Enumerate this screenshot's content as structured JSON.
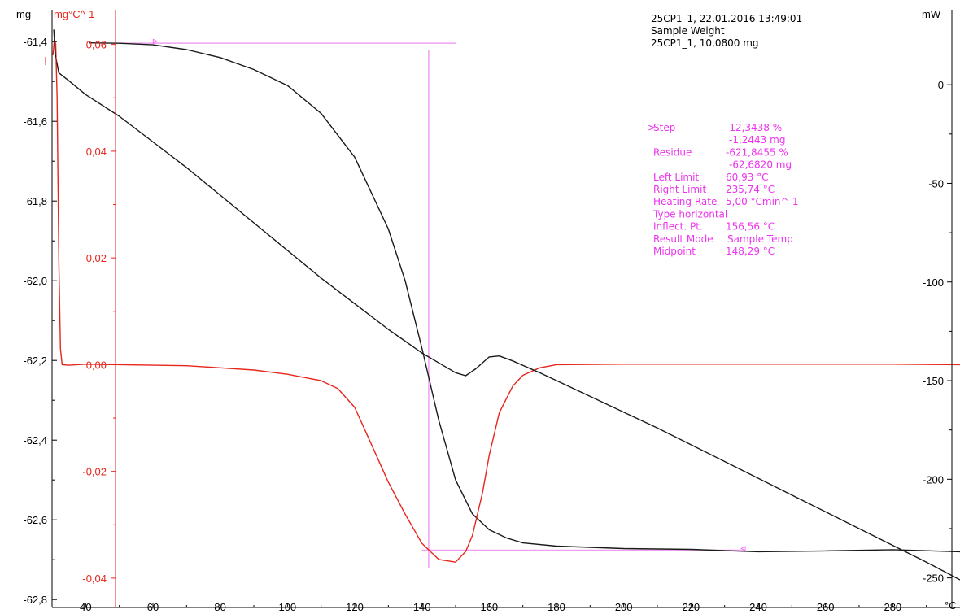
{
  "header": {
    "line1": "25CP1_1, 22.01.2016 13:49:01",
    "line2": "Sample Weight",
    "line3": "25CP1_1, 10,0800 mg"
  },
  "axes": {
    "left_unit": "mg",
    "left2_unit": "mg°C^-1",
    "right_unit": "mW",
    "x_unit": "°C"
  },
  "evaluation": {
    "marker": ">",
    "rows": [
      {
        "label": "Step",
        "value": "-12,3438 %"
      },
      {
        "label": "",
        "value": "-1,2443 mg"
      },
      {
        "label": "Residue",
        "value": "-621,8455 %"
      },
      {
        "label": "",
        "value": "-62,6820 mg"
      },
      {
        "label": "Left Limit",
        "value": "60,93 °C"
      },
      {
        "label": "Right Limit",
        "value": "235,74 °C"
      },
      {
        "label": "Heating Rate",
        "value": "5,00 °Cmin^-1"
      },
      {
        "label": "Type horizontal",
        "value": ""
      },
      {
        "label": "Inflect. Pt.",
        "value": "156,56 °C"
      },
      {
        "label": "Result Mode",
        "value": "Sample Temp"
      },
      {
        "label": "Midpoint",
        "value": "148,29 °C"
      }
    ]
  },
  "colors": {
    "mass": "#1a1a1a",
    "dtg": "#e8261c",
    "heatflow": "#1a1a1a",
    "evaluation": "#ee33ee",
    "guides": "#f0a0f0"
  },
  "chart_data": {
    "type": "line",
    "x_ticks": [
      40,
      60,
      80,
      100,
      120,
      140,
      160,
      180,
      200,
      220,
      240,
      260,
      280
    ],
    "x_tick_labels": [
      "40",
      "60",
      "80",
      "100",
      "120",
      "140",
      "160",
      "180",
      "200",
      "220",
      "240",
      "260",
      "280"
    ],
    "xlim": [
      30,
      300
    ],
    "y_left": {
      "ticks": [
        -61.4,
        -61.6,
        -61.8,
        -62.0,
        -62.2,
        -62.4,
        -62.6,
        -62.8
      ],
      "tick_labels": [
        "-61,4",
        "-61,6",
        "-61,8",
        "-62,0",
        "-62,2",
        "-62,4",
        "-62,6",
        "-62,8"
      ],
      "lim": [
        -62.82,
        -61.32
      ]
    },
    "y_left2": {
      "ticks": [
        0.06,
        0.04,
        0.02,
        0.0,
        -0.02,
        -0.04
      ],
      "tick_labels": [
        "0,06",
        "0,04",
        "0,02",
        "0,00",
        "-0,02",
        "-0,04"
      ],
      "lim": [
        -0.0455,
        0.0665
      ]
    },
    "y_right": {
      "ticks": [
        0,
        -50,
        -100,
        -150,
        -200,
        -250
      ],
      "tick_labels": [
        "0",
        "-50",
        "-100",
        "-150",
        "-200",
        "-250"
      ],
      "lim": [
        -265,
        38
      ]
    },
    "series": [
      {
        "axis": "y_left",
        "x": [
          41,
          50,
          60,
          70,
          80,
          90,
          100,
          110,
          120,
          130,
          135,
          140,
          145,
          150,
          155,
          160,
          165,
          170,
          180,
          200,
          220,
          240,
          260,
          280,
          300
        ],
        "y": [
          -61.403,
          -61.404,
          -61.408,
          -61.42,
          -61.44,
          -61.47,
          -61.51,
          -61.58,
          -61.69,
          -61.87,
          -62.0,
          -62.17,
          -62.35,
          -62.5,
          -62.585,
          -62.625,
          -62.645,
          -62.658,
          -62.666,
          -62.672,
          -62.674,
          -62.68,
          -62.678,
          -62.675,
          -62.68
        ]
      },
      {
        "axis": "y_left2",
        "x": [
          30.3,
          30.7,
          31.1,
          31.5,
          32.0,
          32.5,
          33,
          35,
          40,
          50,
          60,
          70,
          80,
          90,
          100,
          110,
          115,
          120,
          125,
          130,
          135,
          140,
          145,
          150,
          153,
          155,
          158,
          160,
          163,
          167,
          170,
          175,
          180,
          200,
          220,
          240,
          260,
          280,
          300
        ],
        "y": [
          0.058,
          0.061,
          0.06,
          0.05,
          0.02,
          0.003,
          0.0,
          -0.0001,
          0.0001,
          0.0,
          -0.0001,
          -0.0002,
          -0.0006,
          -0.001,
          -0.0018,
          -0.003,
          -0.0045,
          -0.008,
          -0.015,
          -0.022,
          -0.028,
          -0.0335,
          -0.0365,
          -0.037,
          -0.035,
          -0.032,
          -0.024,
          -0.017,
          -0.009,
          -0.004,
          -0.002,
          -0.0006,
          0.0,
          0.0001,
          0.0001,
          0.0001,
          0.0001,
          0.0001,
          0.0
        ]
      },
      {
        "axis": "y_right",
        "x": [
          30.5,
          31,
          32,
          35,
          40,
          50,
          60,
          70,
          80,
          90,
          100,
          110,
          120,
          130,
          140,
          145,
          150,
          153,
          156,
          160,
          163,
          167,
          175,
          190,
          210,
          230,
          250,
          270,
          290,
          300
        ],
        "y": [
          28,
          15,
          6,
          2,
          -5,
          -16,
          -29,
          -42,
          -56,
          -70,
          -84,
          -98,
          -111,
          -124,
          -136,
          -141,
          -146,
          -147.5,
          -144,
          -138,
          -137.5,
          -140,
          -146,
          -158,
          -174,
          -191,
          -208,
          -225,
          -242,
          -251
        ]
      }
    ]
  }
}
